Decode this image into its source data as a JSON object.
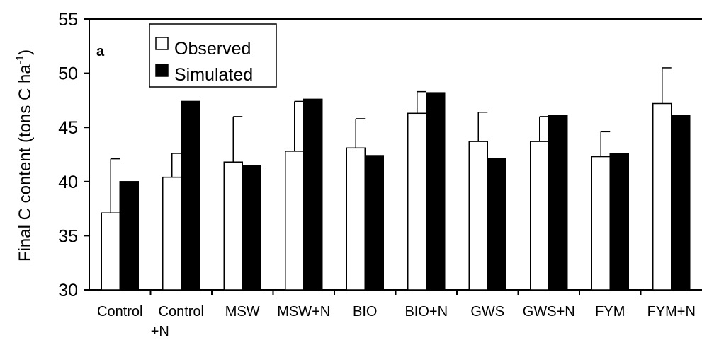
{
  "chart_data": {
    "type": "bar",
    "panel_label": "a",
    "ylabel_main": "Final C content (tons C ha",
    "ylabel_sup": "-1",
    "ylabel_close": ")",
    "xlabel": "",
    "ylim": [
      30,
      55
    ],
    "yticks": [
      30,
      35,
      40,
      45,
      50,
      55
    ],
    "legend_position": "top-left",
    "categories": [
      [
        "Control"
      ],
      [
        "Control",
        "+N"
      ],
      [
        "MSW"
      ],
      [
        "MSW+N"
      ],
      [
        "BIO"
      ],
      [
        "BIO+N"
      ],
      [
        "GWS"
      ],
      [
        "GWS+N"
      ],
      [
        "FYM"
      ],
      [
        "FYM+N"
      ]
    ],
    "series": [
      {
        "name": "Observed",
        "color": "#ffffff",
        "values": [
          37.1,
          40.4,
          41.8,
          42.8,
          43.1,
          46.3,
          43.7,
          43.7,
          42.3,
          47.2
        ],
        "error": [
          5.0,
          2.2,
          4.2,
          4.6,
          2.7,
          2.0,
          2.7,
          2.3,
          2.3,
          3.3
        ]
      },
      {
        "name": "Simulated",
        "color": "#000000",
        "values": [
          40.0,
          47.4,
          41.5,
          47.6,
          42.4,
          48.2,
          42.1,
          46.1,
          42.6,
          46.1
        ]
      }
    ]
  }
}
